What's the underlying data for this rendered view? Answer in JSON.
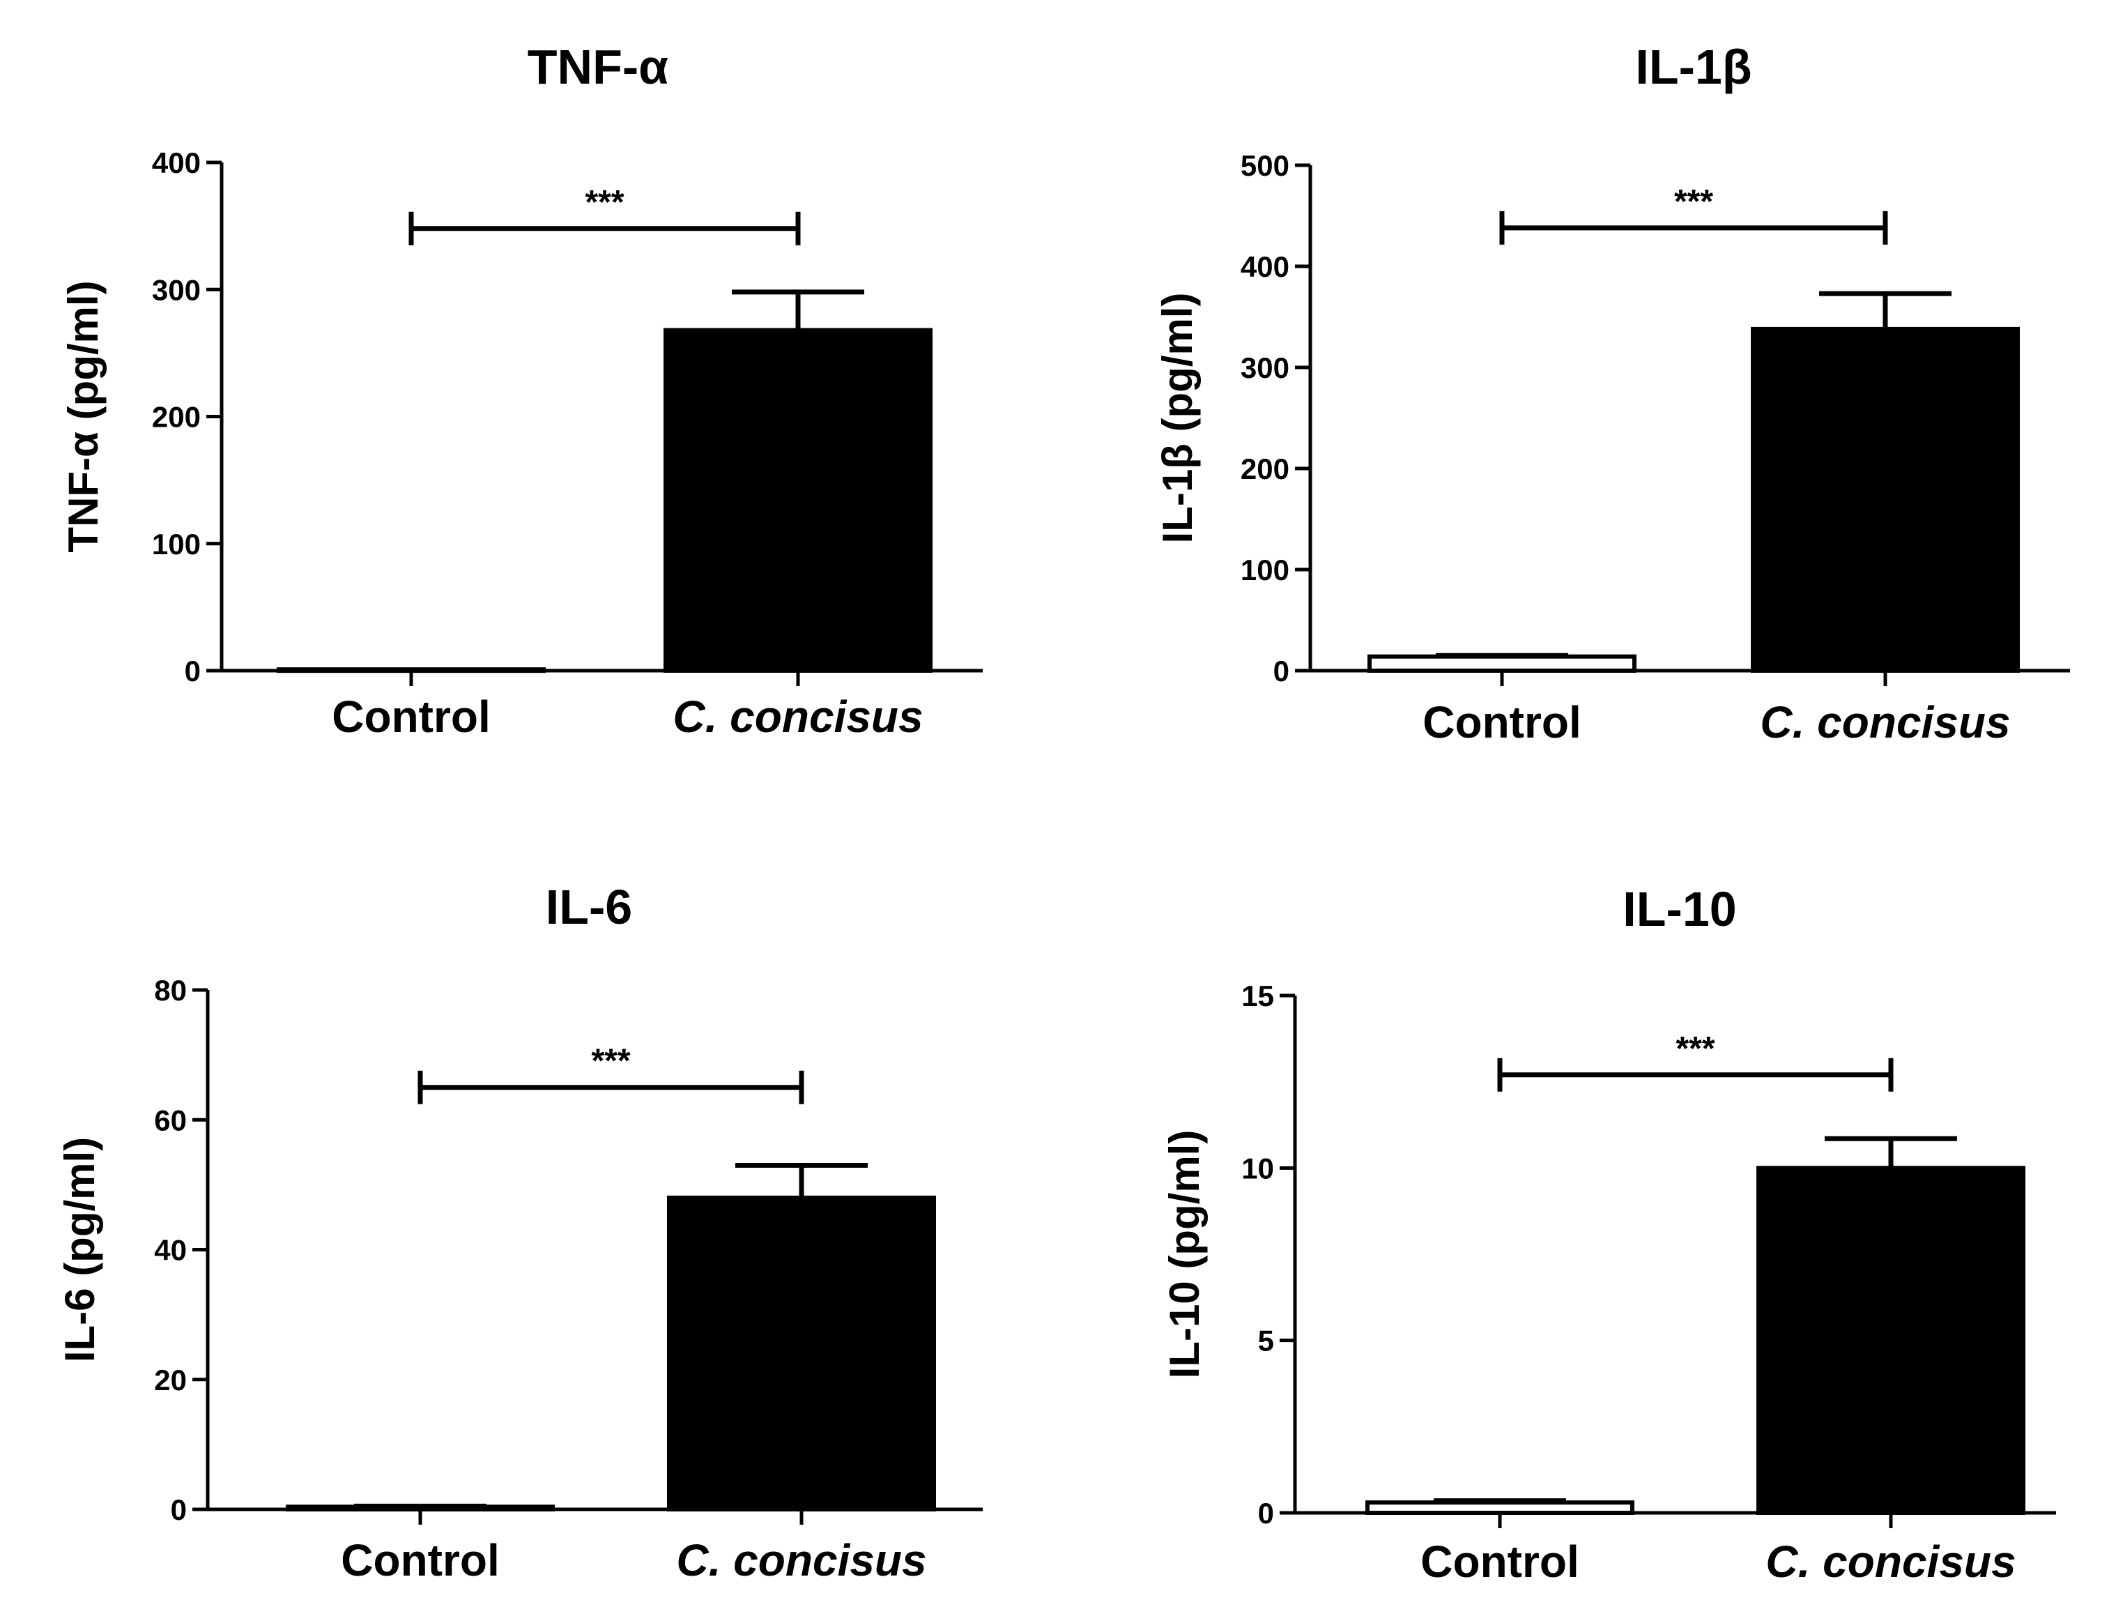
{
  "chart_data": [
    {
      "type": "bar",
      "title": "TNF-α",
      "ylabel": "TNF-α (pg/ml)",
      "xlabel": "",
      "categories": [
        "Control",
        "C. concisus"
      ],
      "italic_categories": [
        false,
        true
      ],
      "values": [
        1,
        268
      ],
      "errors": [
        0,
        30
      ],
      "fills": [
        "#ffffff",
        "#000000"
      ],
      "ylim": [
        0,
        400
      ],
      "yticks": [
        0,
        100,
        200,
        300,
        400
      ],
      "significance": {
        "label": "***",
        "level": 348
      }
    },
    {
      "type": "bar",
      "title": "IL-1β",
      "ylabel": "IL-1β (pg/ml)",
      "xlabel": "",
      "categories": [
        "Control",
        "C. concisus"
      ],
      "italic_categories": [
        false,
        true
      ],
      "values": [
        14,
        338
      ],
      "errors": [
        1,
        35
      ],
      "fills": [
        "#ffffff",
        "#000000"
      ],
      "ylim": [
        0,
        500
      ],
      "yticks": [
        0,
        100,
        200,
        300,
        400,
        500
      ],
      "significance": {
        "label": "***",
        "level": 438
      }
    },
    {
      "type": "bar",
      "title": "IL-6",
      "ylabel": "IL-6 (pg/ml)",
      "xlabel": "",
      "categories": [
        "Control",
        "C. concisus"
      ],
      "italic_categories": [
        false,
        true
      ],
      "values": [
        0.4,
        48
      ],
      "errors": [
        0.1,
        5
      ],
      "fills": [
        "#ffffff",
        "#000000"
      ],
      "ylim": [
        0,
        80
      ],
      "yticks": [
        0,
        20,
        40,
        60,
        80
      ],
      "significance": {
        "label": "***",
        "level": 65
      }
    },
    {
      "type": "bar",
      "title": "IL-10",
      "ylabel": "IL-10 (pg/ml)",
      "xlabel": "",
      "categories": [
        "Control",
        "C. concisus"
      ],
      "italic_categories": [
        false,
        true
      ],
      "values": [
        0.3,
        10
      ],
      "errors": [
        0.05,
        0.85
      ],
      "fills": [
        "#ffffff",
        "#000000"
      ],
      "ylim": [
        0,
        15
      ],
      "yticks": [
        0,
        5,
        10,
        15
      ],
      "significance": {
        "label": "***",
        "level": 12.7
      }
    }
  ],
  "colors": {
    "ink": "#000000",
    "background": "#ffffff"
  }
}
